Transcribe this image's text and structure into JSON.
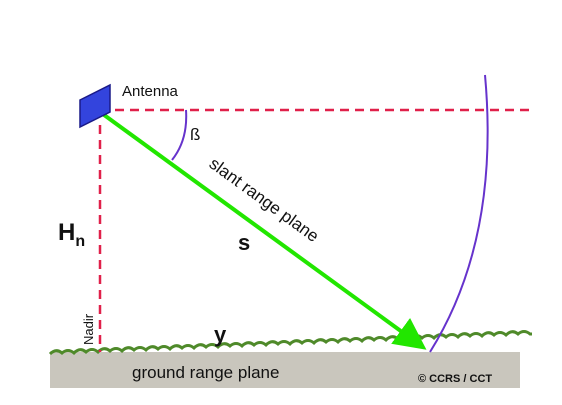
{
  "diagram": {
    "antenna": "Antenna",
    "angle": "ß",
    "slant_plane": "slant range plane",
    "slant_range": "s",
    "height": "H",
    "height_subscript": "n",
    "nadir": "Nadir",
    "ground_range": "y",
    "ground_plane": "ground range plane",
    "credit": "© CCRS / CCT"
  }
}
